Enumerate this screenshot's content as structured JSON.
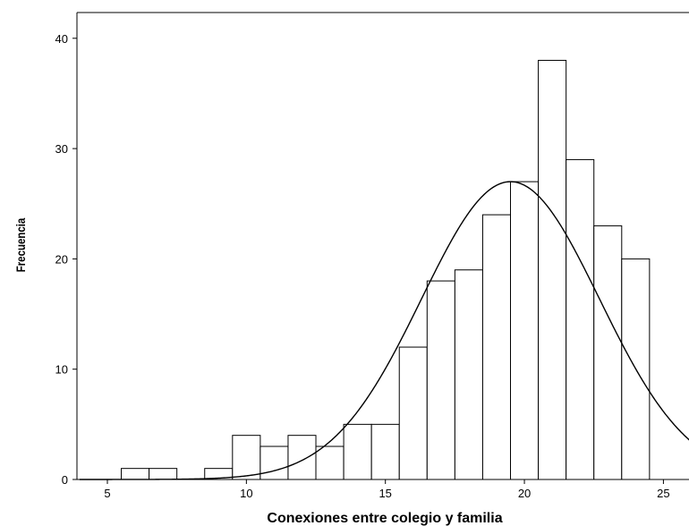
{
  "chart_data": {
    "type": "bar",
    "xlabel": "Conexiones entre colegio y familia",
    "ylabel": "Frecuencia",
    "xlim": [
      3.5,
      26
    ],
    "ylim": [
      0,
      42
    ],
    "x_ticks": [
      5,
      10,
      15,
      20,
      25
    ],
    "y_ticks": [
      0,
      10,
      20,
      30,
      40
    ],
    "bar_width": 1,
    "bins": [
      {
        "center": 6,
        "value": 1
      },
      {
        "center": 7,
        "value": 1
      },
      {
        "center": 9,
        "value": 1
      },
      {
        "center": 10,
        "value": 4
      },
      {
        "center": 11,
        "value": 3
      },
      {
        "center": 12,
        "value": 4
      },
      {
        "center": 13,
        "value": 3
      },
      {
        "center": 14,
        "value": 5
      },
      {
        "center": 15,
        "value": 5
      },
      {
        "center": 16,
        "value": 12
      },
      {
        "center": 17,
        "value": 18
      },
      {
        "center": 18,
        "value": 19
      },
      {
        "center": 19,
        "value": 24
      },
      {
        "center": 20,
        "value": 27
      },
      {
        "center": 21,
        "value": 38
      },
      {
        "center": 22,
        "value": 29
      },
      {
        "center": 23,
        "value": 23
      },
      {
        "center": 24,
        "value": 20
      }
    ],
    "normal_curve": {
      "mean": 19.5,
      "sd": 3.2,
      "peak": 27
    },
    "grid": false,
    "colors": {
      "bar_fill": "#ffffff",
      "bar_stroke": "#000000",
      "axis": "#000000",
      "curve": "#000000"
    }
  }
}
